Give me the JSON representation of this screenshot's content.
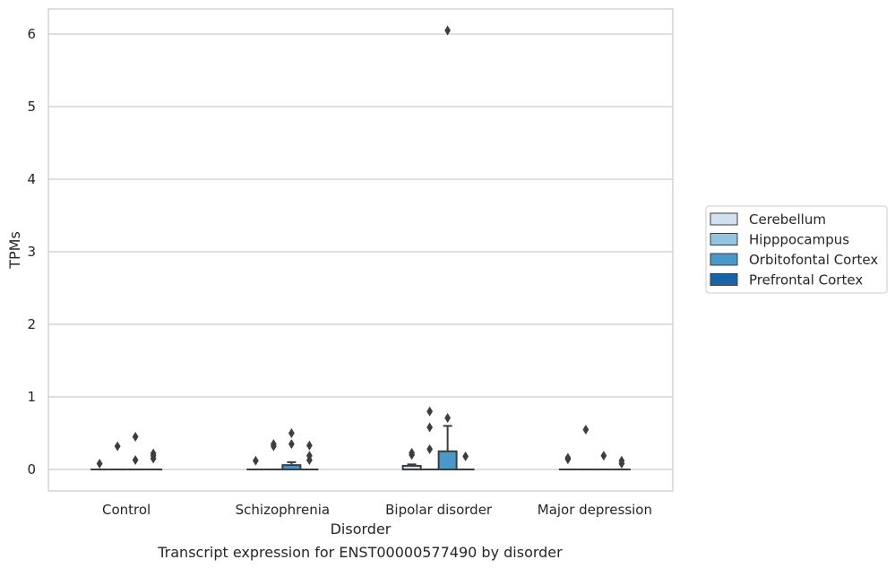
{
  "chart_data": {
    "type": "box",
    "title": "",
    "caption": "Transcript expression for ENST00000577490 by disorder",
    "xlabel": "Disorder",
    "ylabel": "TPMs",
    "ylim": [
      -0.3,
      6.35
    ],
    "yticks": [
      0,
      1,
      2,
      3,
      4,
      5,
      6
    ],
    "grid": "horizontal",
    "legend_position": "right",
    "categories": [
      "Control",
      "Schizophrenia",
      "Bipolar disorder",
      "Major depression"
    ],
    "series": [
      {
        "name": "Cerebellum",
        "color": "#d0e1f2",
        "boxes": [
          {
            "q1": 0,
            "median": 0,
            "q3": 0,
            "whisker_low": 0,
            "whisker_high": 0,
            "outliers": [
              0.08
            ]
          },
          {
            "q1": 0,
            "median": 0,
            "q3": 0,
            "whisker_low": 0,
            "whisker_high": 0,
            "outliers": [
              0.12
            ]
          },
          {
            "q1": 0,
            "median": 0,
            "q3": 0.05,
            "whisker_low": 0,
            "whisker_high": 0.07,
            "outliers": [
              0.2,
              0.23
            ]
          },
          {
            "q1": 0,
            "median": 0,
            "q3": 0,
            "whisker_low": 0,
            "whisker_high": 0,
            "outliers": [
              0.14,
              0.16
            ]
          }
        ]
      },
      {
        "name": "Hipppocampus",
        "color": "#94c4df",
        "boxes": [
          {
            "q1": 0,
            "median": 0,
            "q3": 0,
            "whisker_low": 0,
            "whisker_high": 0,
            "outliers": [
              0.32
            ]
          },
          {
            "q1": 0,
            "median": 0,
            "q3": 0,
            "whisker_low": 0,
            "whisker_high": 0,
            "outliers": [
              0.32,
              0.35
            ]
          },
          {
            "q1": 0,
            "median": 0,
            "q3": 0,
            "whisker_low": 0,
            "whisker_high": 0,
            "outliers": [
              0.28,
              0.58,
              0.8
            ]
          },
          {
            "q1": 0,
            "median": 0,
            "q3": 0,
            "whisker_low": 0,
            "whisker_high": 0,
            "outliers": [
              0.55
            ]
          }
        ]
      },
      {
        "name": "Orbitofontal Cortex",
        "color": "#4a98c9",
        "boxes": [
          {
            "q1": 0,
            "median": 0,
            "q3": 0,
            "whisker_low": 0,
            "whisker_high": 0,
            "outliers": [
              0.13,
              0.45
            ]
          },
          {
            "q1": 0,
            "median": 0,
            "q3": 0.06,
            "whisker_low": 0,
            "whisker_high": 0.1,
            "outliers": [
              0.35,
              0.5
            ]
          },
          {
            "q1": 0,
            "median": 0,
            "q3": 0.25,
            "whisker_low": 0,
            "whisker_high": 0.6,
            "outliers": [
              0.71,
              6.05
            ]
          },
          {
            "q1": 0,
            "median": 0,
            "q3": 0,
            "whisker_low": 0,
            "whisker_high": 0,
            "outliers": [
              0.19
            ]
          }
        ]
      },
      {
        "name": "Prefrontal Cortex",
        "color": "#1764ab",
        "boxes": [
          {
            "q1": 0,
            "median": 0,
            "q3": 0,
            "whisker_low": 0,
            "whisker_high": 0,
            "outliers": [
              0.15,
              0.19,
              0.22
            ]
          },
          {
            "q1": 0,
            "median": 0,
            "q3": 0,
            "whisker_low": 0,
            "whisker_high": 0,
            "outliers": [
              0.13,
              0.19,
              0.33
            ]
          },
          {
            "q1": 0,
            "median": 0,
            "q3": 0,
            "whisker_low": 0,
            "whisker_high": 0,
            "outliers": [
              0.18
            ]
          },
          {
            "q1": 0,
            "median": 0,
            "q3": 0,
            "whisker_low": 0,
            "whisker_high": 0,
            "outliers": [
              0.08,
              0.12
            ]
          }
        ]
      }
    ]
  }
}
